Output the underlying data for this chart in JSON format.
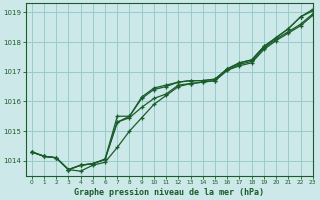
{
  "title": "Graphe pression niveau de la mer (hPa)",
  "bg_color": "#cce8e8",
  "grid_color": "#99cccc",
  "line_color": "#1a5c2a",
  "marker_color": "#1a5c2a",
  "xlim": [
    -0.5,
    23
  ],
  "ylim": [
    1013.5,
    1019.3
  ],
  "yticks": [
    1014,
    1015,
    1016,
    1017,
    1018,
    1019
  ],
  "xticks": [
    0,
    1,
    2,
    3,
    4,
    5,
    6,
    7,
    8,
    9,
    10,
    11,
    12,
    13,
    14,
    15,
    16,
    17,
    18,
    19,
    20,
    21,
    22,
    23
  ],
  "series": [
    [
      1014.3,
      1014.15,
      1014.1,
      1013.7,
      1013.65,
      1013.85,
      1013.95,
      1014.45,
      1015.0,
      1015.45,
      1015.9,
      1016.2,
      1016.5,
      1016.6,
      1016.65,
      1016.7,
      1017.05,
      1017.2,
      1017.3,
      1017.75,
      1018.05,
      1018.3,
      1018.55,
      1018.9
    ],
    [
      1014.3,
      1014.15,
      1014.1,
      1013.7,
      1013.85,
      1013.9,
      1014.05,
      1015.3,
      1015.45,
      1015.8,
      1016.1,
      1016.25,
      1016.55,
      1016.6,
      1016.65,
      1016.7,
      1017.05,
      1017.25,
      1017.35,
      1017.8,
      1018.1,
      1018.35,
      1018.6,
      1018.95
    ],
    [
      1014.3,
      1014.15,
      1014.1,
      1013.7,
      1013.85,
      1013.9,
      1014.05,
      1015.3,
      1015.5,
      1016.1,
      1016.4,
      1016.5,
      1016.65,
      1016.7,
      1016.7,
      1016.75,
      1017.1,
      1017.3,
      1017.4,
      1017.85,
      1018.15,
      1018.45,
      1018.85,
      1019.05
    ],
    [
      1014.3,
      1014.15,
      1014.1,
      1013.7,
      1013.85,
      1013.9,
      1014.05,
      1015.5,
      1015.5,
      1016.15,
      1016.45,
      1016.55,
      1016.65,
      1016.7,
      1016.7,
      1016.75,
      1017.1,
      1017.3,
      1017.4,
      1017.85,
      1018.15,
      1018.45,
      1018.85,
      1019.1
    ]
  ]
}
